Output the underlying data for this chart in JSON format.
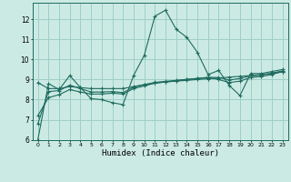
{
  "title": "",
  "xlabel": "Humidex (Indice chaleur)",
  "xlim": [
    -0.5,
    23.5
  ],
  "ylim": [
    6,
    12.8
  ],
  "yticks": [
    6,
    7,
    8,
    9,
    10,
    11,
    12
  ],
  "xticks": [
    0,
    1,
    2,
    3,
    4,
    5,
    6,
    7,
    8,
    9,
    10,
    11,
    12,
    13,
    14,
    15,
    16,
    17,
    18,
    19,
    20,
    21,
    22,
    23
  ],
  "bg_color": "#cceae4",
  "line_color": "#1e6b5e",
  "grid_color": "#9dcfc7",
  "series0": [
    6.0,
    8.8,
    8.5,
    9.2,
    8.6,
    8.05,
    8.0,
    7.85,
    7.75,
    9.2,
    10.2,
    12.15,
    12.45,
    11.5,
    11.1,
    10.35,
    9.25,
    9.45,
    8.7,
    8.2,
    9.3,
    9.3,
    9.4,
    9.5
  ],
  "series1": [
    8.85,
    8.55,
    8.55,
    8.65,
    8.6,
    8.55,
    8.55,
    8.55,
    8.55,
    8.65,
    8.75,
    8.82,
    8.88,
    8.92,
    8.96,
    9.0,
    9.04,
    9.08,
    9.12,
    9.16,
    9.2,
    9.25,
    9.3,
    9.38
  ],
  "series2": [
    7.2,
    8.1,
    8.25,
    8.5,
    8.38,
    8.28,
    8.28,
    8.32,
    8.28,
    8.55,
    8.68,
    8.82,
    8.88,
    8.94,
    9.0,
    9.05,
    9.1,
    9.0,
    8.85,
    8.92,
    9.1,
    9.15,
    9.25,
    9.4
  ],
  "series3": [
    6.8,
    8.4,
    8.45,
    8.72,
    8.55,
    8.38,
    8.38,
    8.4,
    8.35,
    8.62,
    8.74,
    8.86,
    8.91,
    8.96,
    9.01,
    9.06,
    9.11,
    9.1,
    8.98,
    9.05,
    9.18,
    9.22,
    9.32,
    9.43
  ]
}
